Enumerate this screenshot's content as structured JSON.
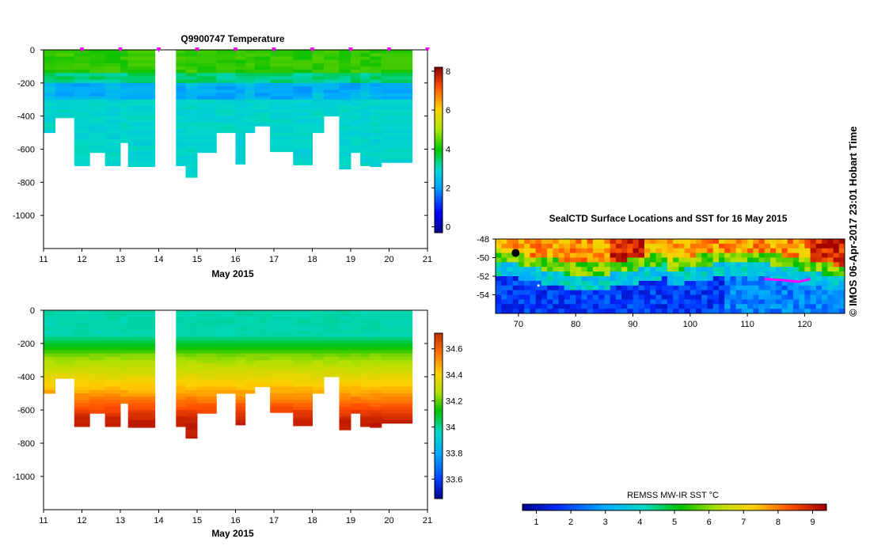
{
  "chart_data": [
    {
      "type": "heatmap",
      "title": "Q9900747  Temperature",
      "xlabel": "May 2015",
      "ylabel": "",
      "x_ticks": [
        "11",
        "12",
        "13",
        "14",
        "15",
        "16",
        "17",
        "18",
        "19",
        "20",
        "21"
      ],
      "y_ticks": [
        "0",
        "-200",
        "-400",
        "-600",
        "-800",
        "-1000"
      ],
      "xlim": [
        11,
        21
      ],
      "ylim": [
        -1200,
        0
      ],
      "colorbar": {
        "ticks": [
          "0",
          "2",
          "4",
          "6",
          "8"
        ],
        "range": [
          -0.3,
          8.2
        ]
      },
      "profiles": [
        {
          "start": 11.0,
          "end": 11.3,
          "depth": -500
        },
        {
          "start": 11.3,
          "end": 11.8,
          "depth": -410
        },
        {
          "start": 11.8,
          "end": 12.2,
          "depth": -700
        },
        {
          "start": 12.2,
          "end": 12.6,
          "depth": -620
        },
        {
          "start": 12.6,
          "end": 13.0,
          "depth": -700
        },
        {
          "start": 13.0,
          "end": 13.2,
          "depth": -560
        },
        {
          "start": 13.2,
          "end": 13.9,
          "depth": -705
        },
        {
          "start": 14.45,
          "end": 14.7,
          "depth": -700
        },
        {
          "start": 14.7,
          "end": 15.0,
          "depth": -770
        },
        {
          "start": 15.0,
          "end": 15.5,
          "depth": -620
        },
        {
          "start": 15.5,
          "end": 16.0,
          "depth": -500
        },
        {
          "start": 16.0,
          "end": 16.25,
          "depth": -690
        },
        {
          "start": 16.25,
          "end": 16.5,
          "depth": -500
        },
        {
          "start": 16.5,
          "end": 16.9,
          "depth": -460
        },
        {
          "start": 16.9,
          "end": 17.5,
          "depth": -615
        },
        {
          "start": 17.5,
          "end": 18.0,
          "depth": -695
        },
        {
          "start": 18.0,
          "end": 18.3,
          "depth": -500
        },
        {
          "start": 18.3,
          "end": 18.7,
          "depth": -400
        },
        {
          "start": 18.7,
          "end": 19.0,
          "depth": -720
        },
        {
          "start": 19.0,
          "end": 19.25,
          "depth": -620
        },
        {
          "start": 19.25,
          "end": 19.5,
          "depth": -700
        },
        {
          "start": 19.5,
          "end": 19.8,
          "depth": -705
        },
        {
          "start": 19.8,
          "end": 20.6,
          "depth": -680
        }
      ],
      "surface_markers": [
        12.0,
        13.0,
        14.0,
        15.0,
        16.0,
        17.0,
        18.0,
        19.0,
        20.0,
        21.0
      ]
    },
    {
      "type": "heatmap",
      "title": "",
      "xlabel": "May 2015",
      "ylabel": "",
      "x_ticks": [
        "11",
        "12",
        "13",
        "14",
        "15",
        "16",
        "17",
        "18",
        "19",
        "20",
        "21"
      ],
      "y_ticks": [
        "0",
        "-200",
        "-400",
        "-600",
        "-800",
        "-1000"
      ],
      "xlim": [
        11,
        21
      ],
      "ylim": [
        -1200,
        0
      ],
      "colorbar": {
        "ticks": [
          "33.6",
          "33.8",
          "34",
          "34.2",
          "34.4",
          "34.6"
        ],
        "range": [
          33.45,
          34.72
        ]
      }
    },
    {
      "type": "heatmap",
      "title": "SealCTD Surface Locations and SST for 16 May 2015",
      "xlabel": "",
      "ylabel": "",
      "x_ticks": [
        "70",
        "80",
        "90",
        "100",
        "110",
        "120"
      ],
      "y_ticks": [
        "-48",
        "-50",
        "-52",
        "-54"
      ],
      "xlim": [
        66,
        127
      ],
      "ylim": [
        -56,
        -48
      ],
      "colorbar_label": "REMSS MW-IR SST °C",
      "colorbar": {
        "ticks": [
          "1",
          "2",
          "3",
          "4",
          "5",
          "6",
          "7",
          "8",
          "9"
        ],
        "range": [
          0.6,
          9.4
        ]
      }
    }
  ],
  "credit": "© IMOS 06-Apr-2017 23:01 Hobart Time"
}
